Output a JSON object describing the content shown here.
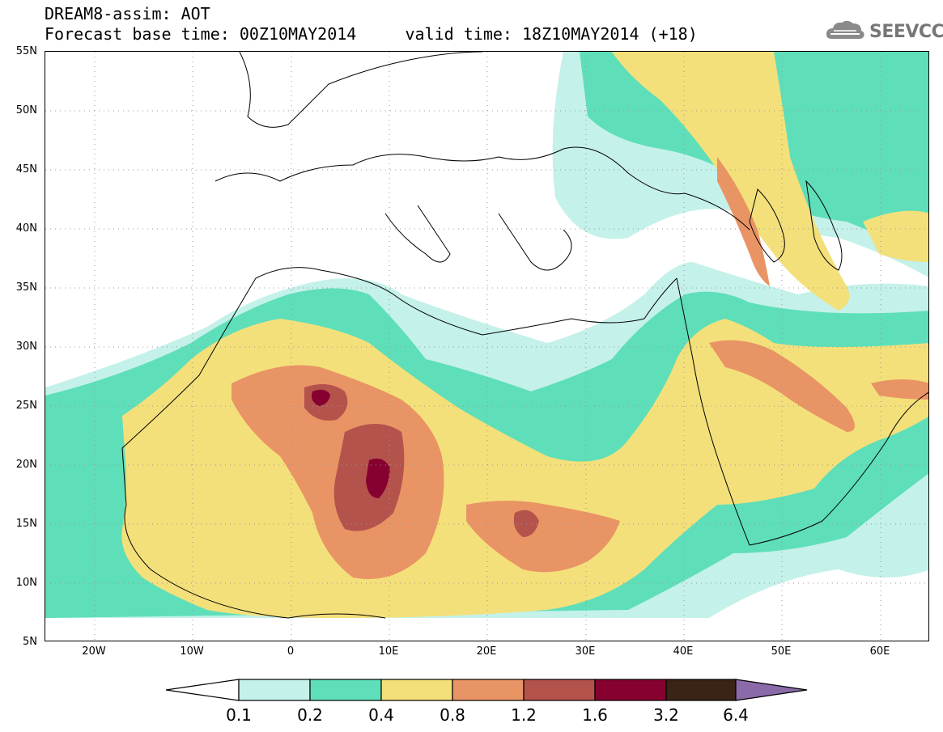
{
  "header": {
    "title_line1": "DREAM8-assim: AOT",
    "title_line2": "Forecast base time: 00Z10MAY2014     valid time: 18Z10MAY2014 (+18)"
  },
  "logo": {
    "text": "SEEVCCC",
    "icon": "cloud-icon"
  },
  "map": {
    "lat_labels": [
      "55N",
      "50N",
      "45N",
      "40N",
      "35N",
      "30N",
      "25N",
      "20N",
      "15N",
      "10N",
      "5N"
    ],
    "lon_labels": [
      "20W",
      "10W",
      "0",
      "10E",
      "20E",
      "30E",
      "40E",
      "50E",
      "60E"
    ],
    "lat_range": [
      5,
      55
    ],
    "lon_range": [
      -25,
      65
    ],
    "grid": "dotted"
  },
  "legend": {
    "labels": [
      "0.1",
      "0.2",
      "0.4",
      "0.8",
      "1.2",
      "1.6",
      "3.2",
      "6.4"
    ],
    "colors": {
      "under": "#ffffff",
      "c1": "#c4f1ea",
      "c2": "#5edfb9",
      "c3": "#f4e07a",
      "c4": "#e99465",
      "c5": "#b4524c",
      "c6": "#860030",
      "c7": "#3a2416",
      "over": "#8a6aa8"
    }
  }
}
